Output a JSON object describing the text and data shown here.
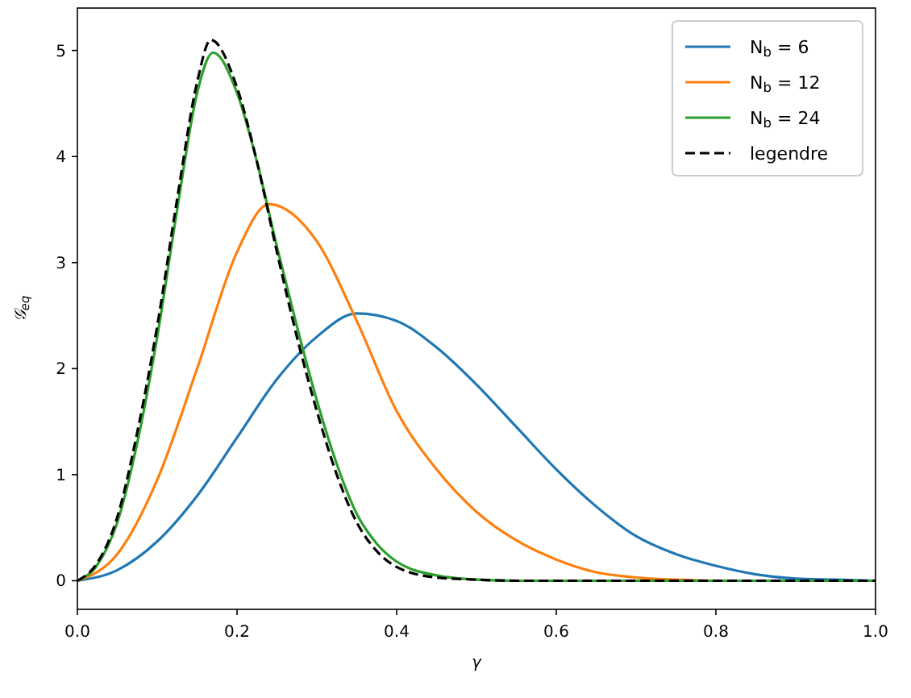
{
  "chart_data": {
    "type": "line",
    "xlabel": "γ",
    "ylabel": "𝒢$_{eq}$",
    "xlim": [
      0,
      1
    ],
    "ylim": [
      -0.27,
      5.4
    ],
    "xticks": [
      {
        "value": 0,
        "label": "0.0"
      },
      0.2,
      0.4,
      0.6,
      0.8,
      {
        "value": 1,
        "label": "1.0"
      }
    ],
    "yticks": [
      0,
      1,
      2,
      3,
      4,
      5
    ],
    "legend": "top right",
    "grid": false,
    "marker": "none",
    "series": [
      {
        "name": "N$_{b}$ = 6",
        "color": "#1f77b4",
        "x": [
          0,
          0.05,
          0.1,
          0.15,
          0.2,
          0.25,
          0.3,
          0.35,
          0.4,
          0.45,
          0.5,
          0.55,
          0.6,
          0.65,
          0.7,
          0.75,
          0.8,
          0.85,
          0.9,
          0.95,
          1
        ],
        "values": [
          0,
          0.1,
          0.37,
          0.8,
          1.35,
          1.9,
          2.3,
          2.52,
          2.45,
          2.2,
          1.85,
          1.45,
          1.05,
          0.7,
          0.42,
          0.25,
          0.14,
          0.06,
          0.02,
          0.01,
          0
        ]
      },
      {
        "name": "N$_{b}$ = 12",
        "color": "#ff7f0e",
        "x": [
          0,
          0.05,
          0.1,
          0.15,
          0.2,
          0.24,
          0.3,
          0.35,
          0.4,
          0.45,
          0.5,
          0.55,
          0.6,
          0.65,
          0.7,
          0.75,
          0.8,
          1
        ],
        "values": [
          0,
          0.25,
          0.95,
          2.0,
          3.1,
          3.55,
          3.2,
          2.45,
          1.6,
          1.05,
          0.65,
          0.38,
          0.2,
          0.08,
          0.03,
          0.01,
          0,
          0
        ]
      },
      {
        "name": "N$_{b}$ = 24",
        "color": "#2ca02c",
        "x": [
          0,
          0.025,
          0.05,
          0.075,
          0.1,
          0.125,
          0.15,
          0.17,
          0.2,
          0.225,
          0.25,
          0.275,
          0.3,
          0.325,
          0.35,
          0.375,
          0.4,
          0.45,
          0.5,
          0.55,
          1
        ],
        "values": [
          0,
          0.15,
          0.55,
          1.3,
          2.3,
          3.5,
          4.6,
          4.98,
          4.6,
          3.95,
          3.15,
          2.4,
          1.7,
          1.1,
          0.63,
          0.35,
          0.18,
          0.05,
          0.01,
          0,
          0
        ]
      },
      {
        "name": "legendre",
        "color": "#000000",
        "line_style": "dashed",
        "x": [
          0,
          0.025,
          0.05,
          0.075,
          0.1,
          0.125,
          0.15,
          0.167,
          0.2,
          0.225,
          0.25,
          0.275,
          0.3,
          0.325,
          0.35,
          0.375,
          0.4,
          0.45,
          0.5,
          0.55,
          1
        ],
        "values": [
          0,
          0.17,
          0.6,
          1.4,
          2.4,
          3.6,
          4.7,
          5.1,
          4.65,
          3.95,
          3.1,
          2.3,
          1.6,
          1.0,
          0.55,
          0.28,
          0.13,
          0.03,
          0.01,
          0,
          0
        ]
      }
    ]
  }
}
